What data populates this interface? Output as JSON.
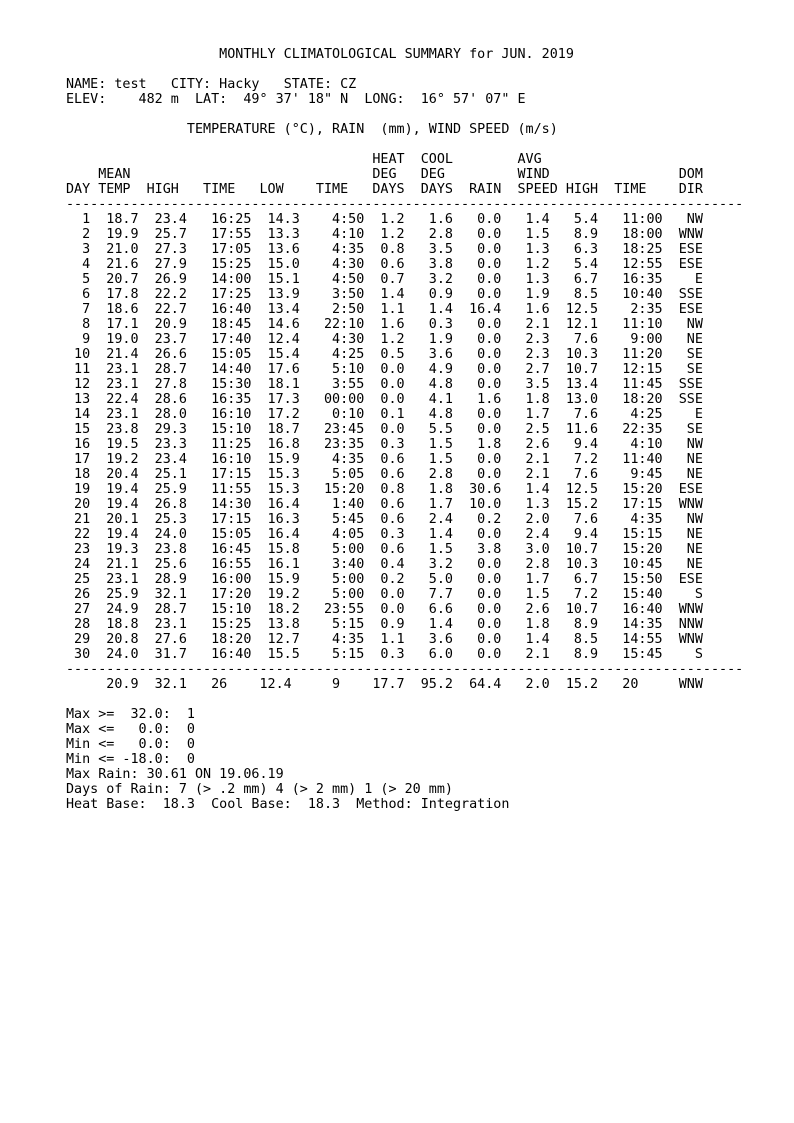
{
  "title": "MONTHLY CLIMATOLOGICAL SUMMARY for JUN. 2019",
  "station": {
    "name_label": "NAME:",
    "name": "test",
    "city_label": "CITY:",
    "city": "Hacky",
    "state_label": "STATE:",
    "state": "CZ",
    "elev_label": "ELEV:",
    "elev": "482 m",
    "lat_label": "LAT:",
    "lat": "49° 37' 18\" N",
    "long_label": "LONG:",
    "long": "16° 57' 07\" E"
  },
  "units_line": "TEMPERATURE (°C), RAIN  (mm), WIND SPEED (m/s)",
  "table": {
    "header_line1": [
      "HEAT",
      "COOL",
      "AVG"
    ],
    "header_line2": [
      "MEAN",
      "DEG",
      "DEG",
      "WIND",
      "DOM"
    ],
    "columns": [
      "DAY",
      "TEMP",
      "HIGH",
      "TIME",
      "LOW",
      "TIME",
      "DAYS",
      "DAYS",
      "RAIN",
      "SPEED",
      "HIGH",
      "TIME",
      "DIR"
    ],
    "rows": [
      [
        "1",
        "18.7",
        "23.4",
        "16:25",
        "14.3",
        "4:50",
        "1.2",
        "1.6",
        "0.0",
        "1.4",
        "5.4",
        "11:00",
        "NW"
      ],
      [
        "2",
        "19.9",
        "25.7",
        "17:55",
        "13.3",
        "4:10",
        "1.2",
        "2.8",
        "0.0",
        "1.5",
        "8.9",
        "18:00",
        "WNW"
      ],
      [
        "3",
        "21.0",
        "27.3",
        "17:05",
        "13.6",
        "4:35",
        "0.8",
        "3.5",
        "0.0",
        "1.3",
        "6.3",
        "18:25",
        "ESE"
      ],
      [
        "4",
        "21.6",
        "27.9",
        "15:25",
        "15.0",
        "4:30",
        "0.6",
        "3.8",
        "0.0",
        "1.2",
        "5.4",
        "12:55",
        "ESE"
      ],
      [
        "5",
        "20.7",
        "26.9",
        "14:00",
        "15.1",
        "4:50",
        "0.7",
        "3.2",
        "0.0",
        "1.3",
        "6.7",
        "16:35",
        "E"
      ],
      [
        "6",
        "17.8",
        "22.2",
        "17:25",
        "13.9",
        "3:50",
        "1.4",
        "0.9",
        "0.0",
        "1.9",
        "8.5",
        "10:40",
        "SSE"
      ],
      [
        "7",
        "18.6",
        "22.7",
        "16:40",
        "13.4",
        "2:50",
        "1.1",
        "1.4",
        "16.4",
        "1.6",
        "12.5",
        "2:35",
        "ESE"
      ],
      [
        "8",
        "17.1",
        "20.9",
        "18:45",
        "14.6",
        "22:10",
        "1.6",
        "0.3",
        "0.0",
        "2.1",
        "12.1",
        "11:10",
        "NW"
      ],
      [
        "9",
        "19.0",
        "23.7",
        "17:40",
        "12.4",
        "4:30",
        "1.2",
        "1.9",
        "0.0",
        "2.3",
        "7.6",
        "9:00",
        "NE"
      ],
      [
        "10",
        "21.4",
        "26.6",
        "15:05",
        "15.4",
        "4:25",
        "0.5",
        "3.6",
        "0.0",
        "2.3",
        "10.3",
        "11:20",
        "SE"
      ],
      [
        "11",
        "23.1",
        "28.7",
        "14:40",
        "17.6",
        "5:10",
        "0.0",
        "4.9",
        "0.0",
        "2.7",
        "10.7",
        "12:15",
        "SE"
      ],
      [
        "12",
        "23.1",
        "27.8",
        "15:30",
        "18.1",
        "3:55",
        "0.0",
        "4.8",
        "0.0",
        "3.5",
        "13.4",
        "11:45",
        "SSE"
      ],
      [
        "13",
        "22.4",
        "28.6",
        "16:35",
        "17.3",
        "00:00",
        "0.0",
        "4.1",
        "1.6",
        "1.8",
        "13.0",
        "18:20",
        "SSE"
      ],
      [
        "14",
        "23.1",
        "28.0",
        "16:10",
        "17.2",
        "0:10",
        "0.1",
        "4.8",
        "0.0",
        "1.7",
        "7.6",
        "4:25",
        "E"
      ],
      [
        "15",
        "23.8",
        "29.3",
        "15:10",
        "18.7",
        "23:45",
        "0.0",
        "5.5",
        "0.0",
        "2.5",
        "11.6",
        "22:35",
        "SE"
      ],
      [
        "16",
        "19.5",
        "23.3",
        "11:25",
        "16.8",
        "23:35",
        "0.3",
        "1.5",
        "1.8",
        "2.6",
        "9.4",
        "4:10",
        "NW"
      ],
      [
        "17",
        "19.2",
        "23.4",
        "16:10",
        "15.9",
        "4:35",
        "0.6",
        "1.5",
        "0.0",
        "2.1",
        "7.2",
        "11:40",
        "NE"
      ],
      [
        "18",
        "20.4",
        "25.1",
        "17:15",
        "15.3",
        "5:05",
        "0.6",
        "2.8",
        "0.0",
        "2.1",
        "7.6",
        "9:45",
        "NE"
      ],
      [
        "19",
        "19.4",
        "25.9",
        "11:55",
        "15.3",
        "15:20",
        "0.8",
        "1.8",
        "30.6",
        "1.4",
        "12.5",
        "15:20",
        "ESE"
      ],
      [
        "20",
        "19.4",
        "26.8",
        "14:30",
        "16.4",
        "1:40",
        "0.6",
        "1.7",
        "10.0",
        "1.3",
        "15.2",
        "17:15",
        "WNW"
      ],
      [
        "21",
        "20.1",
        "25.3",
        "17:15",
        "16.3",
        "5:45",
        "0.6",
        "2.4",
        "0.2",
        "2.0",
        "7.6",
        "4:35",
        "NW"
      ],
      [
        "22",
        "19.4",
        "24.0",
        "15:05",
        "16.4",
        "4:05",
        "0.3",
        "1.4",
        "0.0",
        "2.4",
        "9.4",
        "15:15",
        "NE"
      ],
      [
        "23",
        "19.3",
        "23.8",
        "16:45",
        "15.8",
        "5:00",
        "0.6",
        "1.5",
        "3.8",
        "3.0",
        "10.7",
        "15:20",
        "NE"
      ],
      [
        "24",
        "21.1",
        "25.6",
        "16:55",
        "16.1",
        "3:40",
        "0.4",
        "3.2",
        "0.0",
        "2.8",
        "10.3",
        "10:45",
        "NE"
      ],
      [
        "25",
        "23.1",
        "28.9",
        "16:00",
        "15.9",
        "5:00",
        "0.2",
        "5.0",
        "0.0",
        "1.7",
        "6.7",
        "15:50",
        "ESE"
      ],
      [
        "26",
        "25.9",
        "32.1",
        "17:20",
        "19.2",
        "5:00",
        "0.0",
        "7.7",
        "0.0",
        "1.5",
        "7.2",
        "15:40",
        "S"
      ],
      [
        "27",
        "24.9",
        "28.7",
        "15:10",
        "18.2",
        "23:55",
        "0.0",
        "6.6",
        "0.0",
        "2.6",
        "10.7",
        "16:40",
        "WNW"
      ],
      [
        "28",
        "18.8",
        "23.1",
        "15:25",
        "13.8",
        "5:15",
        "0.9",
        "1.4",
        "0.0",
        "1.8",
        "8.9",
        "14:35",
        "NNW"
      ],
      [
        "29",
        "20.8",
        "27.6",
        "18:20",
        "12.7",
        "4:35",
        "1.1",
        "3.6",
        "0.0",
        "1.4",
        "8.5",
        "14:55",
        "WNW"
      ],
      [
        "30",
        "24.0",
        "31.7",
        "16:40",
        "15.5",
        "5:15",
        "0.3",
        "6.0",
        "0.0",
        "2.1",
        "8.9",
        "15:45",
        "S"
      ]
    ],
    "summary": [
      "20.9",
      "32.1",
      "26",
      "12.4",
      "9",
      "17.7",
      "95.2",
      "64.4",
      "2.0",
      "15.2",
      "20",
      "WNW"
    ]
  },
  "footer": {
    "thresholds": [
      {
        "label": "Max >=",
        "value": "32.0",
        "count": "1"
      },
      {
        "label": "Max <=",
        "value": "0.0",
        "count": "0"
      },
      {
        "label": "Min <=",
        "value": "0.0",
        "count": "0"
      },
      {
        "label": "Min <=",
        "value": "-18.0",
        "count": "0"
      }
    ],
    "max_rain_label": "Max Rain:",
    "max_rain": "30.61 ON 19.06.19",
    "days_of_rain_label": "Days of Rain:",
    "days_of_rain": "7 (> .2 mm) 4 (> 2 mm) 1 (> 20 mm)",
    "heat_base_label": "Heat Base:",
    "heat_base": "18.3",
    "cool_base_label": "Cool Base:",
    "cool_base": "18.3",
    "method_label": "Method:",
    "method": "Integration"
  }
}
